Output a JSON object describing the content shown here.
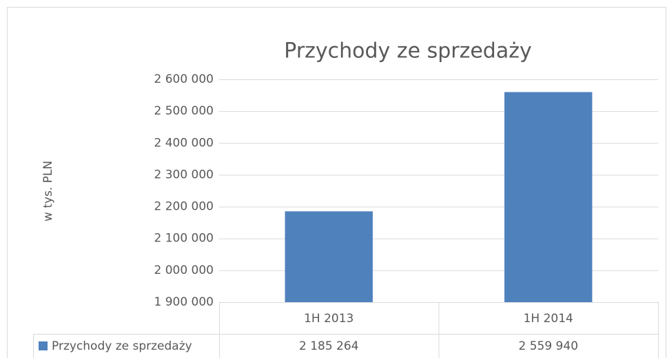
{
  "chart_data": {
    "type": "bar",
    "title": "Przychody ze sprzedaży",
    "y_label": "w tys. PLN",
    "categories": [
      "1H 2013",
      "1H 2014"
    ],
    "series": [
      {
        "name": "Przychody ze sprzedaży",
        "color": "#4f81bd",
        "values": [
          2185264,
          2559940
        ],
        "value_labels": [
          "2 185 264",
          "2 559 940"
        ]
      }
    ],
    "ylim": [
      1900000,
      2600000
    ],
    "yticks": [
      {
        "value": 1900000,
        "label": "1 900 000"
      },
      {
        "value": 2000000,
        "label": "2 000 000"
      },
      {
        "value": 2100000,
        "label": "2 100 000"
      },
      {
        "value": 2200000,
        "label": "2 200 000"
      },
      {
        "value": 2300000,
        "label": "2 300 000"
      },
      {
        "value": 2400000,
        "label": "2 400 000"
      },
      {
        "value": 2500000,
        "label": "2 500 000"
      },
      {
        "value": 2600000,
        "label": "2 600 000"
      }
    ],
    "grid": true,
    "data_table": true
  }
}
